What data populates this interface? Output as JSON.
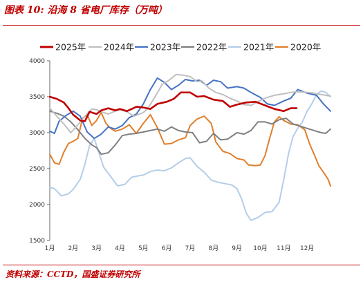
{
  "header": {
    "title": "图表 10:  沿海 8 省电厂库存（万吨）"
  },
  "footer": {
    "source": "资料来源：CCTD，国盛证券研究所"
  },
  "colors": {
    "2025年": "#c00000",
    "2024年": "#bfbfbf",
    "2023年": "#4472c4",
    "2022年": "#7f7f7f",
    "2021年": "#b4cde8",
    "2020年": "#e07f2d"
  },
  "chart_data": {
    "type": "line",
    "title": "沿海 8 省电厂库存（万吨）",
    "xlabel": "",
    "ylabel": "",
    "ylim": [
      1500,
      4000
    ],
    "yticks": [
      4000,
      3500,
      3000,
      2500,
      2000,
      1500
    ],
    "xlim": [
      1,
      13
    ],
    "xticks": [
      "1月",
      "2月",
      "3月",
      "4月",
      "5月",
      "6月",
      "7月",
      "8月",
      "9月",
      "10月",
      "11月",
      "12月"
    ],
    "legend_position": "top",
    "grid": false,
    "series": [
      {
        "name": "2025年",
        "points": [
          [
            1.0,
            3500
          ],
          [
            1.3,
            3470
          ],
          [
            1.6,
            3420
          ],
          [
            1.8,
            3340
          ],
          [
            2.0,
            3250
          ],
          [
            2.3,
            3170
          ],
          [
            2.5,
            3160
          ],
          [
            2.7,
            3290
          ],
          [
            3.0,
            3260
          ],
          [
            3.2,
            3310
          ],
          [
            3.5,
            3340
          ],
          [
            3.8,
            3310
          ],
          [
            4.0,
            3330
          ],
          [
            4.3,
            3300
          ],
          [
            4.7,
            3360
          ],
          [
            5.0,
            3350
          ],
          [
            5.3,
            3330
          ],
          [
            5.6,
            3400
          ],
          [
            6.0,
            3430
          ],
          [
            6.3,
            3470
          ],
          [
            6.6,
            3560
          ],
          [
            7.0,
            3560
          ],
          [
            7.3,
            3500
          ],
          [
            7.6,
            3510
          ],
          [
            8.0,
            3460
          ],
          [
            8.4,
            3440
          ],
          [
            8.7,
            3360
          ],
          [
            9.0,
            3390
          ],
          [
            9.4,
            3420
          ],
          [
            9.8,
            3430
          ],
          [
            10.2,
            3380
          ],
          [
            10.6,
            3330
          ],
          [
            11.0,
            3300
          ],
          [
            11.3,
            3340
          ],
          [
            11.55,
            3340
          ]
        ]
      },
      {
        "name": "2024年",
        "points": [
          [
            1.0,
            3340
          ],
          [
            1.3,
            3230
          ],
          [
            1.6,
            3120
          ],
          [
            1.9,
            3000
          ],
          [
            2.2,
            3110
          ],
          [
            2.5,
            3230
          ],
          [
            2.8,
            3330
          ],
          [
            3.0,
            3320
          ],
          [
            3.2,
            3290
          ],
          [
            3.5,
            3260
          ],
          [
            3.8,
            3300
          ],
          [
            4.0,
            3320
          ],
          [
            4.3,
            3290
          ],
          [
            4.6,
            3230
          ],
          [
            5.0,
            3280
          ],
          [
            5.2,
            3340
          ],
          [
            5.5,
            3500
          ],
          [
            5.8,
            3670
          ],
          [
            6.1,
            3730
          ],
          [
            6.4,
            3810
          ],
          [
            6.7,
            3800
          ],
          [
            7.0,
            3780
          ],
          [
            7.3,
            3710
          ],
          [
            7.5,
            3720
          ],
          [
            7.8,
            3620
          ],
          [
            8.1,
            3560
          ],
          [
            8.4,
            3530
          ],
          [
            8.7,
            3480
          ],
          [
            9.0,
            3440
          ],
          [
            9.3,
            3390
          ],
          [
            9.6,
            3380
          ],
          [
            10.0,
            3450
          ],
          [
            10.3,
            3490
          ],
          [
            10.6,
            3520
          ],
          [
            11.0,
            3540
          ],
          [
            11.3,
            3560
          ],
          [
            11.6,
            3570
          ],
          [
            12.0,
            3560
          ],
          [
            12.3,
            3550
          ],
          [
            12.6,
            3530
          ],
          [
            13.0,
            3510
          ]
        ]
      },
      {
        "name": "2023年",
        "points": [
          [
            1.0,
            3020
          ],
          [
            1.2,
            2990
          ],
          [
            1.4,
            3160
          ],
          [
            1.7,
            3240
          ],
          [
            2.0,
            3300
          ],
          [
            2.3,
            3230
          ],
          [
            2.6,
            3010
          ],
          [
            2.9,
            2920
          ],
          [
            3.2,
            2980
          ],
          [
            3.5,
            3080
          ],
          [
            3.8,
            3050
          ],
          [
            4.1,
            3100
          ],
          [
            4.4,
            3210
          ],
          [
            4.7,
            3260
          ],
          [
            5.0,
            3400
          ],
          [
            5.3,
            3600
          ],
          [
            5.6,
            3760
          ],
          [
            5.9,
            3700
          ],
          [
            6.2,
            3600
          ],
          [
            6.5,
            3660
          ],
          [
            6.8,
            3740
          ],
          [
            7.1,
            3720
          ],
          [
            7.4,
            3730
          ],
          [
            7.7,
            3660
          ],
          [
            8.0,
            3730
          ],
          [
            8.3,
            3710
          ],
          [
            8.6,
            3620
          ],
          [
            9.0,
            3640
          ],
          [
            9.3,
            3620
          ],
          [
            9.6,
            3560
          ],
          [
            10.0,
            3490
          ],
          [
            10.3,
            3400
          ],
          [
            10.6,
            3380
          ],
          [
            11.0,
            3440
          ],
          [
            11.3,
            3480
          ],
          [
            11.6,
            3600
          ],
          [
            12.0,
            3550
          ],
          [
            12.4,
            3520
          ],
          [
            12.7,
            3400
          ],
          [
            13.0,
            3300
          ]
        ]
      },
      {
        "name": "2022年",
        "points": [
          [
            1.0,
            3300
          ],
          [
            1.3,
            3270
          ],
          [
            1.6,
            3230
          ],
          [
            1.9,
            3150
          ],
          [
            2.2,
            3040
          ],
          [
            2.5,
            2920
          ],
          [
            2.8,
            2830
          ],
          [
            3.0,
            2790
          ],
          [
            3.2,
            2700
          ],
          [
            3.5,
            2720
          ],
          [
            3.8,
            2830
          ],
          [
            4.1,
            2960
          ],
          [
            4.4,
            2980
          ],
          [
            4.7,
            2990
          ],
          [
            5.0,
            3010
          ],
          [
            5.3,
            3030
          ],
          [
            5.6,
            3050
          ],
          [
            5.9,
            3020
          ],
          [
            6.2,
            3080
          ],
          [
            6.5,
            3030
          ],
          [
            6.8,
            3010
          ],
          [
            7.1,
            3000
          ],
          [
            7.4,
            2860
          ],
          [
            7.7,
            2880
          ],
          [
            8.0,
            2990
          ],
          [
            8.3,
            2900
          ],
          [
            8.6,
            2910
          ],
          [
            9.0,
            3000
          ],
          [
            9.3,
            2980
          ],
          [
            9.6,
            3030
          ],
          [
            9.9,
            3150
          ],
          [
            10.2,
            3150
          ],
          [
            10.5,
            3120
          ],
          [
            10.8,
            3180
          ],
          [
            11.1,
            3200
          ],
          [
            11.4,
            3120
          ],
          [
            11.7,
            3090
          ],
          [
            12.0,
            3060
          ],
          [
            12.3,
            3030
          ],
          [
            12.6,
            3000
          ],
          [
            12.8,
            2990
          ],
          [
            13.0,
            3050
          ]
        ]
      },
      {
        "name": "2021年",
        "points": [
          [
            1.0,
            2240
          ],
          [
            1.2,
            2220
          ],
          [
            1.5,
            2120
          ],
          [
            1.8,
            2150
          ],
          [
            2.0,
            2210
          ],
          [
            2.3,
            2350
          ],
          [
            2.5,
            2560
          ],
          [
            2.7,
            2820
          ],
          [
            2.9,
            2920
          ],
          [
            3.1,
            2720
          ],
          [
            3.3,
            2520
          ],
          [
            3.6,
            2390
          ],
          [
            3.9,
            2260
          ],
          [
            4.2,
            2280
          ],
          [
            4.5,
            2380
          ],
          [
            4.8,
            2400
          ],
          [
            5.0,
            2410
          ],
          [
            5.3,
            2460
          ],
          [
            5.6,
            2480
          ],
          [
            5.9,
            2470
          ],
          [
            6.2,
            2510
          ],
          [
            6.5,
            2580
          ],
          [
            6.8,
            2640
          ],
          [
            7.0,
            2650
          ],
          [
            7.3,
            2530
          ],
          [
            7.6,
            2450
          ],
          [
            7.9,
            2340
          ],
          [
            8.2,
            2310
          ],
          [
            8.5,
            2290
          ],
          [
            8.8,
            2270
          ],
          [
            9.0,
            2220
          ],
          [
            9.2,
            2080
          ],
          [
            9.4,
            1880
          ],
          [
            9.6,
            1780
          ],
          [
            9.9,
            1820
          ],
          [
            10.2,
            1890
          ],
          [
            10.5,
            1900
          ],
          [
            10.8,
            2030
          ],
          [
            11.0,
            2340
          ],
          [
            11.2,
            2700
          ],
          [
            11.4,
            2950
          ],
          [
            11.6,
            3060
          ],
          [
            11.8,
            3150
          ],
          [
            12.0,
            3300
          ],
          [
            12.2,
            3400
          ],
          [
            12.4,
            3530
          ],
          [
            12.6,
            3580
          ],
          [
            12.8,
            3560
          ],
          [
            13.0,
            3500
          ]
        ]
      },
      {
        "name": "2020年",
        "points": [
          [
            1.0,
            2700
          ],
          [
            1.2,
            2580
          ],
          [
            1.4,
            2560
          ],
          [
            1.6,
            2730
          ],
          [
            1.8,
            2850
          ],
          [
            2.0,
            2880
          ],
          [
            2.2,
            2920
          ],
          [
            2.4,
            3200
          ],
          [
            2.6,
            3250
          ],
          [
            2.8,
            3100
          ],
          [
            3.0,
            3170
          ],
          [
            3.2,
            3280
          ],
          [
            3.4,
            3130
          ],
          [
            3.6,
            3060
          ],
          [
            3.8,
            3020
          ],
          [
            4.1,
            3050
          ],
          [
            4.4,
            3110
          ],
          [
            4.7,
            2990
          ],
          [
            5.0,
            3130
          ],
          [
            5.3,
            3250
          ],
          [
            5.6,
            3070
          ],
          [
            5.9,
            2840
          ],
          [
            6.2,
            2850
          ],
          [
            6.5,
            2900
          ],
          [
            6.8,
            2930
          ],
          [
            7.0,
            3100
          ],
          [
            7.3,
            3190
          ],
          [
            7.6,
            3230
          ],
          [
            7.9,
            3130
          ],
          [
            8.1,
            2870
          ],
          [
            8.4,
            2740
          ],
          [
            8.7,
            2710
          ],
          [
            9.0,
            2640
          ],
          [
            9.3,
            2620
          ],
          [
            9.5,
            2550
          ],
          [
            9.8,
            2540
          ],
          [
            10.0,
            2550
          ],
          [
            10.2,
            2680
          ],
          [
            10.4,
            2920
          ],
          [
            10.6,
            3150
          ],
          [
            10.8,
            3220
          ],
          [
            11.0,
            3170
          ],
          [
            11.3,
            3120
          ],
          [
            11.6,
            3110
          ],
          [
            11.9,
            3040
          ],
          [
            12.1,
            2850
          ],
          [
            12.3,
            2700
          ],
          [
            12.5,
            2540
          ],
          [
            12.7,
            2450
          ],
          [
            12.9,
            2350
          ],
          [
            13.0,
            2260
          ]
        ]
      }
    ]
  }
}
